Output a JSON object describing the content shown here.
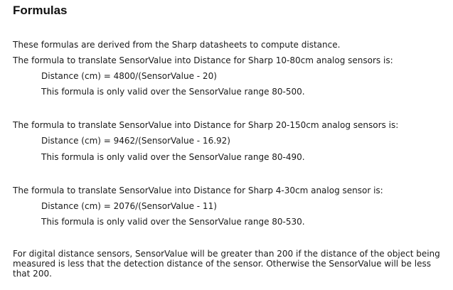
{
  "title": "Formulas",
  "intro": "These formulas are derived from the Sharp datasheets to compute distance.",
  "sections": [
    {
      "heading": "The formula to translate SensorValue into Distance for Sharp 10-80cm analog sensors is:",
      "formula": "Distance (cm) = 4800/(SensorValue - 20)",
      "validity": "This formula is only valid over the SensorValue range 80-500."
    },
    {
      "heading": "The formula to translate SensorValue into Distance for Sharp 20-150cm analog sensors is:",
      "formula": "Distance (cm) = 9462/(SensorValue - 16.92)",
      "validity": "This formula is only valid over the SensorValue range 80-490."
    },
    {
      "heading": "The formula to translate SensorValue into Distance for Sharp 4-30cm analog sensor is:",
      "formula": "Distance (cm) = 2076/(SensorValue - 11)",
      "validity": "This formula is only valid over the SensorValue range 80-530."
    }
  ],
  "digital_note": "For digital distance sensors, SensorValue will be greater than 200 if the distance of the object being measured is less that the detection distance of the sensor. Otherwise the SensorValue will be less that 200."
}
